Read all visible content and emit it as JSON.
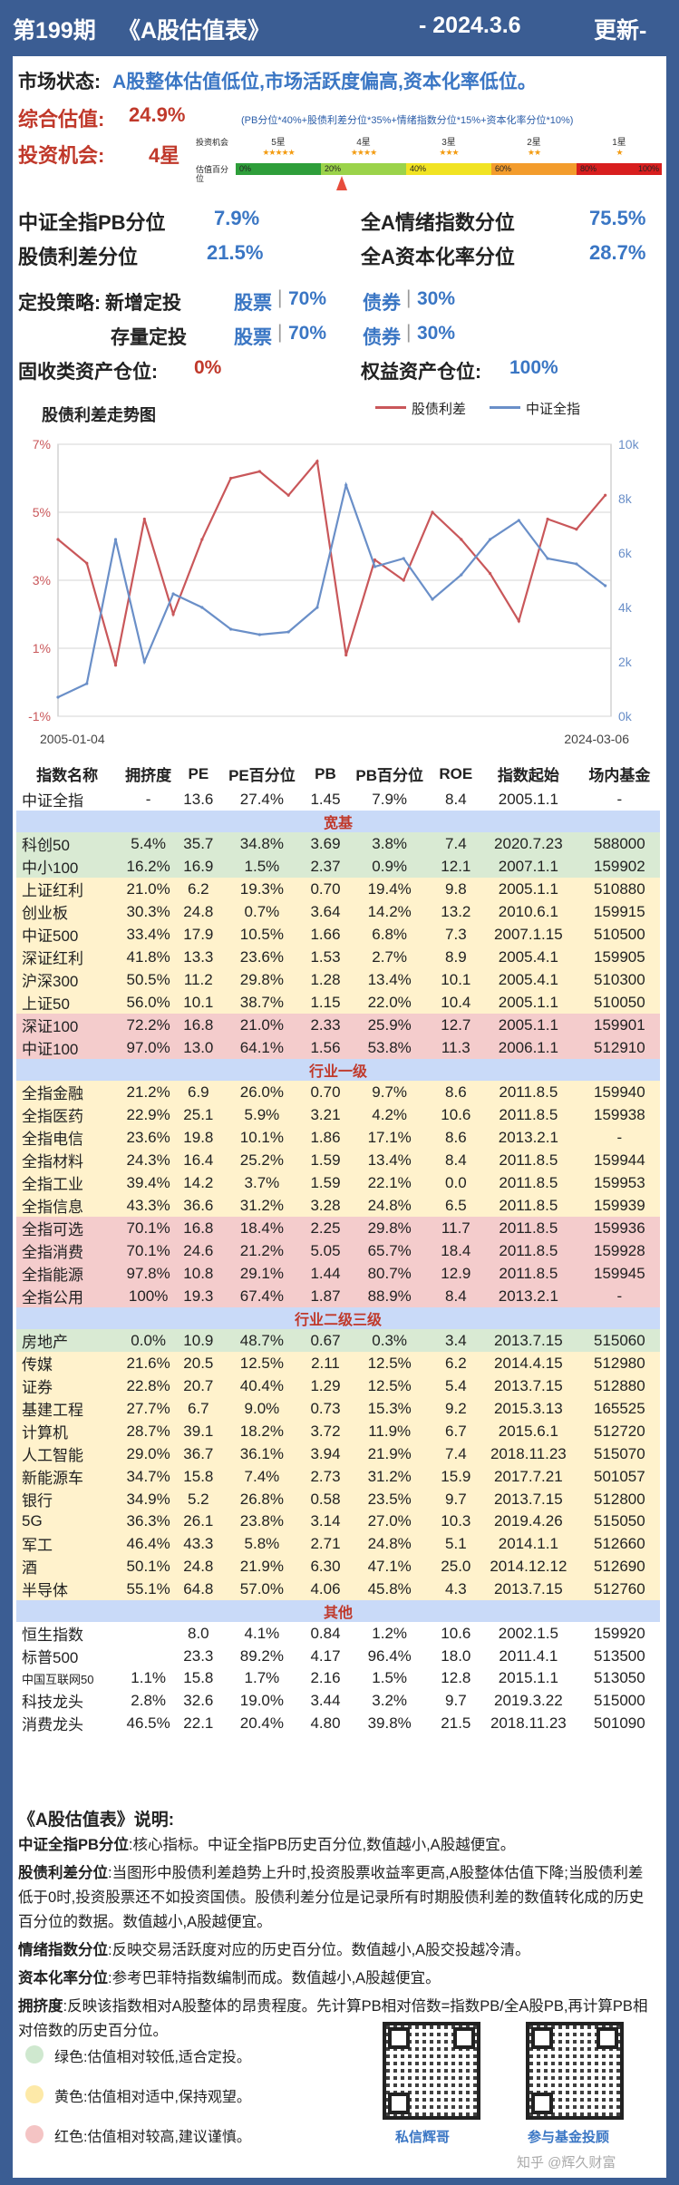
{
  "header": {
    "issue": "第199期",
    "title": "《A股估值表》",
    "date": "- 2024.3.6",
    "update": "更新-"
  },
  "status": {
    "label": "市场状态:",
    "value": "A股整体估值低位,市场活跃度偏高,资本化率低位。",
    "composite_label": "综合估值:",
    "composite_value": "24.9%",
    "opportunity_label": "投资机会:",
    "opportunity_value": "4星",
    "formula": "(PB分位*40%+股债利差分位*35%+情绪指数分位*15%+资本化率分位*10%)"
  },
  "gauge": {
    "row1_label": "投资机会",
    "row2_label": "估值百分位",
    "levels": [
      {
        "label": "5星",
        "stars": "★★★★★",
        "range": "0%",
        "color": "#2e9e3a"
      },
      {
        "label": "4星",
        "stars": "★★★★",
        "range": "20%",
        "color": "#9bd34a"
      },
      {
        "label": "3星",
        "stars": "★★★",
        "range": "40%",
        "color": "#f1e323"
      },
      {
        "label": "2星",
        "stars": "★★",
        "range": "60%",
        "color": "#f39c2c"
      },
      {
        "label": "1星",
        "stars": "★",
        "range": "80%",
        "color": "#d81e1e"
      }
    ],
    "end_label": "100%",
    "marker_percent": 24.9
  },
  "metrics": [
    {
      "label": "中证全指PB分位",
      "value": "7.9%"
    },
    {
      "label": "全A情绪指数分位",
      "value": "75.5%"
    },
    {
      "label": "股债利差分位",
      "value": "21.5%"
    },
    {
      "label": "全A资本化率分位",
      "value": "28.7%"
    }
  ],
  "strategy": {
    "label": "定投策略:",
    "new_label": "新增定投",
    "stock_label": "股票",
    "stock_new": "70%",
    "bond_label": "债券",
    "bond_new": "30%",
    "stock_label2": "股票",
    "bond_label2": "债券",
    "existing_label": "存量定投",
    "stock_existing": "70%",
    "bond_existing": "30%",
    "fixed_income_label": "固收类资产仓位:",
    "fixed_income_value": "0%",
    "equity_label": "权益资产仓位:",
    "equity_value": "100%"
  },
  "chart_data": {
    "type": "line",
    "title": "股债利差走势图",
    "x_start": "2005-01-04",
    "x_end": "2024-03-06",
    "series": [
      {
        "name": "股债利差",
        "axis": "left",
        "color": "#c9575a",
        "x": [
          "2005",
          "2006",
          "2007",
          "2008",
          "2009",
          "2010",
          "2011",
          "2012",
          "2013",
          "2014",
          "2015",
          "2016",
          "2017",
          "2018",
          "2019",
          "2020",
          "2021",
          "2022",
          "2023",
          "2024"
        ],
        "values": [
          4.2,
          3.5,
          0.5,
          4.8,
          2.0,
          4.2,
          6.0,
          6.2,
          5.5,
          6.5,
          0.8,
          3.6,
          3.0,
          5.0,
          4.2,
          3.2,
          1.8,
          4.8,
          4.5,
          5.5
        ]
      },
      {
        "name": "中证全指",
        "axis": "right",
        "color": "#6a8fc8",
        "x": [
          "2005",
          "2006",
          "2007",
          "2008",
          "2009",
          "2010",
          "2011",
          "2012",
          "2013",
          "2014",
          "2015",
          "2016",
          "2017",
          "2018",
          "2019",
          "2020",
          "2021",
          "2022",
          "2023",
          "2024"
        ],
        "values": [
          700,
          1200,
          6500,
          2000,
          4500,
          4000,
          3200,
          3000,
          3100,
          4000,
          8500,
          5500,
          5800,
          4300,
          5200,
          6500,
          7200,
          5800,
          5600,
          4800
        ]
      }
    ],
    "y_left": {
      "ticks": [
        "7%",
        "5%",
        "3%",
        "1%",
        "-1%"
      ],
      "lim": [
        -1,
        7
      ]
    },
    "y_right": {
      "ticks": [
        "10k",
        "8k",
        "6k",
        "4k",
        "2k",
        "0k"
      ],
      "lim": [
        0,
        10000
      ]
    }
  },
  "table": {
    "headers": [
      "指数名称",
      "拥挤度",
      "PE",
      "PE百分位",
      "PB",
      "PB百分位",
      "ROE",
      "指数起始",
      "场内基金"
    ],
    "rows": [
      {
        "t": "w",
        "c": [
          "中证全指",
          "-",
          "13.6",
          "27.4%",
          "1.45",
          "7.9%",
          "8.4",
          "2005.1.1",
          "-"
        ]
      },
      {
        "t": "sec",
        "label": "宽基"
      },
      {
        "t": "g",
        "c": [
          "科创50",
          "5.4%",
          "35.7",
          "34.8%",
          "3.69",
          "3.8%",
          "7.4",
          "2020.7.23",
          "588000"
        ]
      },
      {
        "t": "g",
        "c": [
          "中小100",
          "16.2%",
          "16.9",
          "1.5%",
          "2.37",
          "0.9%",
          "12.1",
          "2007.1.1",
          "159902"
        ]
      },
      {
        "t": "y",
        "c": [
          "上证红利",
          "21.0%",
          "6.2",
          "19.3%",
          "0.70",
          "19.4%",
          "9.8",
          "2005.1.1",
          "510880"
        ]
      },
      {
        "t": "y",
        "c": [
          "创业板",
          "30.3%",
          "24.8",
          "0.7%",
          "3.64",
          "14.2%",
          "13.2",
          "2010.6.1",
          "159915"
        ]
      },
      {
        "t": "y",
        "c": [
          "中证500",
          "33.4%",
          "17.9",
          "10.5%",
          "1.66",
          "6.8%",
          "7.3",
          "2007.1.15",
          "510500"
        ]
      },
      {
        "t": "y",
        "c": [
          "深证红利",
          "41.8%",
          "13.3",
          "23.6%",
          "1.53",
          "2.7%",
          "8.9",
          "2005.4.1",
          "159905"
        ]
      },
      {
        "t": "y",
        "c": [
          "沪深300",
          "50.5%",
          "11.2",
          "29.8%",
          "1.28",
          "13.4%",
          "10.1",
          "2005.4.1",
          "510300"
        ]
      },
      {
        "t": "y",
        "c": [
          "上证50",
          "56.0%",
          "10.1",
          "38.7%",
          "1.15",
          "22.0%",
          "10.4",
          "2005.1.1",
          "510050"
        ]
      },
      {
        "t": "r",
        "c": [
          "深证100",
          "72.2%",
          "16.8",
          "21.0%",
          "2.33",
          "25.9%",
          "12.7",
          "2005.1.1",
          "159901"
        ]
      },
      {
        "t": "r",
        "c": [
          "中证100",
          "97.0%",
          "13.0",
          "64.1%",
          "1.56",
          "53.8%",
          "11.3",
          "2006.1.1",
          "512910"
        ]
      },
      {
        "t": "sec",
        "label": "行业一级"
      },
      {
        "t": "y",
        "c": [
          "全指金融",
          "21.2%",
          "6.9",
          "26.0%",
          "0.70",
          "9.7%",
          "8.6",
          "2011.8.5",
          "159940"
        ]
      },
      {
        "t": "y",
        "c": [
          "全指医药",
          "22.9%",
          "25.1",
          "5.9%",
          "3.21",
          "4.2%",
          "10.6",
          "2011.8.5",
          "159938"
        ]
      },
      {
        "t": "y",
        "c": [
          "全指电信",
          "23.6%",
          "19.8",
          "10.1%",
          "1.86",
          "17.1%",
          "8.6",
          "2013.2.1",
          "-"
        ]
      },
      {
        "t": "y",
        "c": [
          "全指材料",
          "24.3%",
          "16.4",
          "25.2%",
          "1.59",
          "13.4%",
          "8.4",
          "2011.8.5",
          "159944"
        ]
      },
      {
        "t": "y",
        "c": [
          "全指工业",
          "39.4%",
          "14.2",
          "3.7%",
          "1.59",
          "22.1%",
          "0.0",
          "2011.8.5",
          "159953"
        ]
      },
      {
        "t": "y",
        "c": [
          "全指信息",
          "43.3%",
          "36.6",
          "31.2%",
          "3.28",
          "24.8%",
          "6.5",
          "2011.8.5",
          "159939"
        ]
      },
      {
        "t": "r",
        "c": [
          "全指可选",
          "70.1%",
          "16.8",
          "18.4%",
          "2.25",
          "29.8%",
          "11.7",
          "2011.8.5",
          "159936"
        ]
      },
      {
        "t": "r",
        "c": [
          "全指消费",
          "70.1%",
          "24.6",
          "21.2%",
          "5.05",
          "65.7%",
          "18.4",
          "2011.8.5",
          "159928"
        ]
      },
      {
        "t": "r",
        "c": [
          "全指能源",
          "97.8%",
          "10.8",
          "29.1%",
          "1.44",
          "80.7%",
          "12.9",
          "2011.8.5",
          "159945"
        ]
      },
      {
        "t": "r",
        "c": [
          "全指公用",
          "100%",
          "19.3",
          "67.4%",
          "1.87",
          "88.9%",
          "8.4",
          "2013.2.1",
          "-"
        ]
      },
      {
        "t": "sec",
        "label": "行业二级三级"
      },
      {
        "t": "g",
        "c": [
          "房地产",
          "0.0%",
          "10.9",
          "48.7%",
          "0.67",
          "0.3%",
          "3.4",
          "2013.7.15",
          "515060"
        ]
      },
      {
        "t": "y",
        "c": [
          "传媒",
          "21.6%",
          "20.5",
          "12.5%",
          "2.11",
          "12.5%",
          "6.2",
          "2014.4.15",
          "512980"
        ]
      },
      {
        "t": "y",
        "c": [
          "证券",
          "22.8%",
          "20.7",
          "40.4%",
          "1.29",
          "12.5%",
          "5.4",
          "2013.7.15",
          "512880"
        ]
      },
      {
        "t": "y",
        "c": [
          "基建工程",
          "27.7%",
          "6.7",
          "9.0%",
          "0.73",
          "15.3%",
          "9.2",
          "2015.3.13",
          "165525"
        ]
      },
      {
        "t": "y",
        "c": [
          "计算机",
          "28.7%",
          "39.1",
          "18.2%",
          "3.72",
          "11.9%",
          "6.7",
          "2015.6.1",
          "512720"
        ]
      },
      {
        "t": "y",
        "c": [
          "人工智能",
          "29.0%",
          "36.7",
          "36.1%",
          "3.94",
          "21.9%",
          "7.4",
          "2018.11.23",
          "515070"
        ]
      },
      {
        "t": "y",
        "c": [
          "新能源车",
          "34.7%",
          "15.8",
          "7.4%",
          "2.73",
          "31.2%",
          "15.9",
          "2017.7.21",
          "501057"
        ]
      },
      {
        "t": "y",
        "c": [
          "银行",
          "34.9%",
          "5.2",
          "26.8%",
          "0.58",
          "23.5%",
          "9.7",
          "2013.7.15",
          "512800"
        ]
      },
      {
        "t": "y",
        "c": [
          "5G",
          "36.3%",
          "26.1",
          "23.8%",
          "3.14",
          "27.0%",
          "10.3",
          "2019.4.26",
          "515050"
        ]
      },
      {
        "t": "y",
        "c": [
          "军工",
          "46.4%",
          "43.3",
          "5.8%",
          "2.71",
          "24.8%",
          "5.1",
          "2014.1.1",
          "512660"
        ]
      },
      {
        "t": "y",
        "c": [
          "酒",
          "50.1%",
          "24.8",
          "21.9%",
          "6.30",
          "47.1%",
          "25.0",
          "2014.12.12",
          "512690"
        ]
      },
      {
        "t": "y",
        "c": [
          "半导体",
          "55.1%",
          "64.8",
          "57.0%",
          "4.06",
          "45.8%",
          "4.3",
          "2013.7.15",
          "512760"
        ]
      },
      {
        "t": "sec",
        "label": "其他"
      },
      {
        "t": "w",
        "c": [
          "恒生指数",
          "",
          "8.0",
          "4.1%",
          "0.84",
          "1.2%",
          "10.6",
          "2002.1.5",
          "159920"
        ]
      },
      {
        "t": "w",
        "c": [
          "标普500",
          "",
          "23.3",
          "89.2%",
          "4.17",
          "96.4%",
          "18.0",
          "2011.4.1",
          "513500"
        ]
      },
      {
        "t": "w",
        "c": [
          "中国互联网50",
          "1.1%",
          "15.8",
          "1.7%",
          "2.16",
          "1.5%",
          "12.8",
          "2015.1.1",
          "513050"
        ]
      },
      {
        "t": "w",
        "c": [
          "科技龙头",
          "2.8%",
          "32.6",
          "19.0%",
          "3.44",
          "3.2%",
          "9.7",
          "2019.3.22",
          "515000"
        ]
      },
      {
        "t": "w",
        "c": [
          "消费龙头",
          "46.5%",
          "22.1",
          "20.4%",
          "4.80",
          "39.8%",
          "21.5",
          "2018.11.23",
          "501090"
        ]
      }
    ]
  },
  "notes": {
    "title": "《A股估值表》说明:",
    "items": [
      {
        "term": "中证全指PB分位",
        "text": ":核心指标。中证全指PB历史百分位,数值越小,A股越便宜。"
      },
      {
        "term": "股债利差分位",
        "text": ":当图形中股债利差趋势上升时,投资股票收益率更高,A股整体估值下降;当股债利差低于0时,投资股票还不如投资国债。股债利差分位是记录所有时期股债利差的数值转化成的历史百分位的数据。数值越小,A股越便宜。"
      },
      {
        "term": "情绪指数分位",
        "text": ":反映交易活跃度对应的历史百分位。数值越小,A股交投越冷清。"
      },
      {
        "term": "资本化率分位",
        "text": ":参考巴菲特指数编制而成。数值越小,A股越便宜。"
      },
      {
        "term": "拥挤度",
        "text": ":反映该指数相对A股整体的昂贵程度。先计算PB相对倍数=指数PB/全A股PB,再计算PB相对倍数的历史百分位。"
      }
    ],
    "legend": [
      {
        "label": "绿色:估值相对较低,适合定投。",
        "color": "#cfe8cf"
      },
      {
        "label": "黄色:估值相对适中,保持观望。",
        "color": "#fde9a8"
      },
      {
        "label": "红色:估值相对较高,建议谨慎。",
        "color": "#f4c4c4"
      }
    ],
    "qr1_label": "私信辉哥",
    "qr2_label": "参与基金投顾",
    "watermark": "知乎 @辉久财富"
  }
}
